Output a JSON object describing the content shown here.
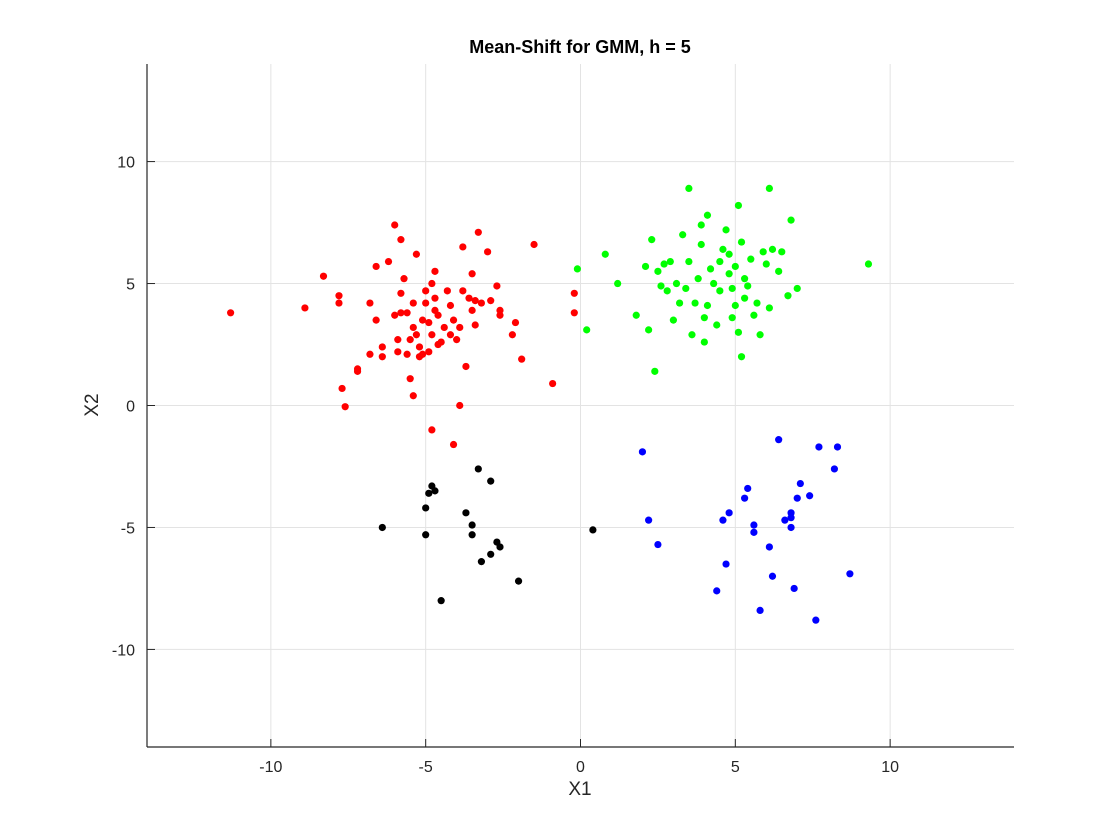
{
  "chart_data": {
    "type": "scatter",
    "title": "Mean-Shift for GMM, h = 5",
    "xlabel": "X1",
    "ylabel": "X2",
    "xlim": [
      -14,
      14
    ],
    "ylim": [
      -14,
      14
    ],
    "xticks": [
      -10,
      -5,
      0,
      5,
      10
    ],
    "yticks": [
      -10,
      -5,
      0,
      5,
      10
    ],
    "grid": true,
    "series": [
      {
        "color": "#ff0000",
        "points": [
          [
            -11.3,
            3.8
          ],
          [
            -8.9,
            4.0
          ],
          [
            -8.3,
            5.3
          ],
          [
            -7.8,
            4.2
          ],
          [
            -7.8,
            4.5
          ],
          [
            -7.7,
            0.7
          ],
          [
            -7.6,
            -0.05
          ],
          [
            -7.2,
            1.5
          ],
          [
            -7.2,
            1.4
          ],
          [
            -6.8,
            2.1
          ],
          [
            -6.8,
            4.2
          ],
          [
            -6.6,
            3.5
          ],
          [
            -6.6,
            5.7
          ],
          [
            -6.4,
            2.4
          ],
          [
            -6.4,
            2.0
          ],
          [
            -6.2,
            5.9
          ],
          [
            -6.0,
            3.7
          ],
          [
            -6.0,
            7.4
          ],
          [
            -5.9,
            2.2
          ],
          [
            -5.9,
            2.7
          ],
          [
            -5.8,
            6.8
          ],
          [
            -5.8,
            3.8
          ],
          [
            -5.8,
            4.6
          ],
          [
            -5.7,
            5.2
          ],
          [
            -5.6,
            3.8
          ],
          [
            -5.6,
            2.1
          ],
          [
            -5.5,
            1.1
          ],
          [
            -5.5,
            2.7
          ],
          [
            -5.4,
            4.2
          ],
          [
            -5.4,
            3.2
          ],
          [
            -5.4,
            0.4
          ],
          [
            -5.3,
            6.2
          ],
          [
            -5.3,
            2.9
          ],
          [
            -5.2,
            2.4
          ],
          [
            -5.2,
            2.0
          ],
          [
            -5.1,
            3.5
          ],
          [
            -5.1,
            2.1
          ],
          [
            -5.0,
            4.2
          ],
          [
            -5.0,
            4.7
          ],
          [
            -4.9,
            3.4
          ],
          [
            -4.9,
            2.2
          ],
          [
            -4.8,
            2.9
          ],
          [
            -4.8,
            5.0
          ],
          [
            -4.7,
            5.5
          ],
          [
            -4.7,
            4.4
          ],
          [
            -4.7,
            3.9
          ],
          [
            -4.6,
            2.5
          ],
          [
            -4.6,
            3.7
          ],
          [
            -4.5,
            2.6
          ],
          [
            -4.4,
            3.2
          ],
          [
            -4.3,
            4.7
          ],
          [
            -4.2,
            4.1
          ],
          [
            -4.2,
            2.9
          ],
          [
            -4.1,
            3.5
          ],
          [
            -4.0,
            2.7
          ],
          [
            -3.9,
            3.2
          ],
          [
            -3.8,
            4.7
          ],
          [
            -3.8,
            6.5
          ],
          [
            -3.7,
            1.6
          ],
          [
            -3.6,
            4.4
          ],
          [
            -3.5,
            5.4
          ],
          [
            -3.5,
            3.9
          ],
          [
            -3.4,
            4.3
          ],
          [
            -3.4,
            3.3
          ],
          [
            -3.3,
            7.1
          ],
          [
            -3.2,
            4.2
          ],
          [
            -3.0,
            6.3
          ],
          [
            -2.9,
            4.3
          ],
          [
            -2.7,
            4.9
          ],
          [
            -2.6,
            3.7
          ],
          [
            -2.6,
            3.9
          ],
          [
            -2.1,
            3.4
          ],
          [
            -2.2,
            2.9
          ],
          [
            -1.9,
            1.9
          ],
          [
            -1.5,
            6.6
          ],
          [
            -0.9,
            0.9
          ],
          [
            -0.2,
            3.8
          ],
          [
            -0.2,
            4.6
          ],
          [
            -4.8,
            -1.0
          ],
          [
            -4.1,
            -1.6
          ],
          [
            -3.9,
            0.0
          ]
        ]
      },
      {
        "color": "#00ff00",
        "points": [
          [
            -0.1,
            5.6
          ],
          [
            0.2,
            3.1
          ],
          [
            0.8,
            6.2
          ],
          [
            1.2,
            5.0
          ],
          [
            1.8,
            3.7
          ],
          [
            2.1,
            5.7
          ],
          [
            2.2,
            3.1
          ],
          [
            2.3,
            6.8
          ],
          [
            2.4,
            1.4
          ],
          [
            2.5,
            5.5
          ],
          [
            2.6,
            4.9
          ],
          [
            2.7,
            5.8
          ],
          [
            2.8,
            4.7
          ],
          [
            2.9,
            5.9
          ],
          [
            3.0,
            3.5
          ],
          [
            3.1,
            5.0
          ],
          [
            3.2,
            4.2
          ],
          [
            3.3,
            7.0
          ],
          [
            3.4,
            4.8
          ],
          [
            3.5,
            5.9
          ],
          [
            3.6,
            2.9
          ],
          [
            3.7,
            4.2
          ],
          [
            3.8,
            5.2
          ],
          [
            3.9,
            6.6
          ],
          [
            3.9,
            7.4
          ],
          [
            4.0,
            3.6
          ],
          [
            4.0,
            2.6
          ],
          [
            4.1,
            4.1
          ],
          [
            4.1,
            7.8
          ],
          [
            4.2,
            5.6
          ],
          [
            4.3,
            5.0
          ],
          [
            4.4,
            3.3
          ],
          [
            4.5,
            4.7
          ],
          [
            4.5,
            5.9
          ],
          [
            4.6,
            6.4
          ],
          [
            4.7,
            7.2
          ],
          [
            4.8,
            5.4
          ],
          [
            4.8,
            6.2
          ],
          [
            4.9,
            4.8
          ],
          [
            4.9,
            3.6
          ],
          [
            5.0,
            5.7
          ],
          [
            5.0,
            4.1
          ],
          [
            5.1,
            8.2
          ],
          [
            5.1,
            3.0
          ],
          [
            5.2,
            6.7
          ],
          [
            5.2,
            2.0
          ],
          [
            5.3,
            5.2
          ],
          [
            5.3,
            4.4
          ],
          [
            5.4,
            4.9
          ],
          [
            5.5,
            6.0
          ],
          [
            5.6,
            3.7
          ],
          [
            5.7,
            4.2
          ],
          [
            5.8,
            2.9
          ],
          [
            5.9,
            6.3
          ],
          [
            6.0,
            5.8
          ],
          [
            6.1,
            4.0
          ],
          [
            6.1,
            8.9
          ],
          [
            6.2,
            6.4
          ],
          [
            6.4,
            5.5
          ],
          [
            6.5,
            6.3
          ],
          [
            6.7,
            4.5
          ],
          [
            6.8,
            7.6
          ],
          [
            7.0,
            4.8
          ],
          [
            9.3,
            5.8
          ],
          [
            3.5,
            8.9
          ]
        ]
      },
      {
        "color": "#0000ff",
        "points": [
          [
            2.0,
            -1.9
          ],
          [
            2.2,
            -4.7
          ],
          [
            2.5,
            -5.7
          ],
          [
            4.4,
            -7.6
          ],
          [
            4.6,
            -4.7
          ],
          [
            4.7,
            -6.5
          ],
          [
            4.8,
            -4.4
          ],
          [
            5.3,
            -3.8
          ],
          [
            5.4,
            -3.4
          ],
          [
            5.6,
            -4.9
          ],
          [
            5.6,
            -5.2
          ],
          [
            5.8,
            -8.4
          ],
          [
            6.1,
            -5.8
          ],
          [
            6.2,
            -7.0
          ],
          [
            6.4,
            -1.4
          ],
          [
            6.6,
            -4.7
          ],
          [
            6.8,
            -4.4
          ],
          [
            6.8,
            -5.0
          ],
          [
            6.9,
            -7.5
          ],
          [
            7.0,
            -3.8
          ],
          [
            7.1,
            -3.2
          ],
          [
            7.4,
            -3.7
          ],
          [
            7.6,
            -8.8
          ],
          [
            7.7,
            -1.7
          ],
          [
            8.2,
            -2.6
          ],
          [
            8.3,
            -1.7
          ],
          [
            8.7,
            -6.9
          ],
          [
            6.8,
            -4.6
          ]
        ]
      },
      {
        "color": "#000000",
        "points": [
          [
            -6.4,
            -5.0
          ],
          [
            -5.0,
            -5.3
          ],
          [
            -5.0,
            -4.2
          ],
          [
            -4.9,
            -3.6
          ],
          [
            -4.8,
            -3.3
          ],
          [
            -4.7,
            -3.5
          ],
          [
            -4.5,
            -8.0
          ],
          [
            -3.7,
            -4.4
          ],
          [
            -3.5,
            -4.9
          ],
          [
            -3.5,
            -5.3
          ],
          [
            -3.3,
            -2.6
          ],
          [
            -3.2,
            -6.4
          ],
          [
            -2.9,
            -6.1
          ],
          [
            -2.9,
            -3.1
          ],
          [
            -2.7,
            -5.6
          ],
          [
            -2.6,
            -5.8
          ],
          [
            -2.0,
            -7.2
          ],
          [
            0.4,
            -5.1
          ]
        ]
      }
    ]
  }
}
